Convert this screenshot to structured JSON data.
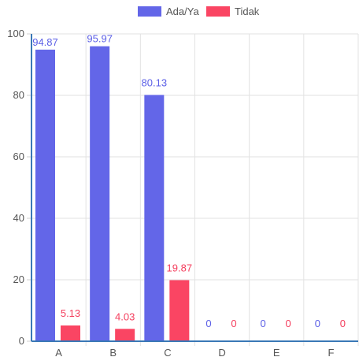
{
  "chart_data": {
    "type": "bar",
    "categories": [
      "A",
      "B",
      "C",
      "D",
      "E",
      "F"
    ],
    "series": [
      {
        "name": "Ada/Ya",
        "values": [
          94.87,
          95.97,
          80.13,
          0,
          0,
          0
        ],
        "color": "#6366e8",
        "label_color": "#5b5fe6"
      },
      {
        "name": "Tidak",
        "values": [
          5.13,
          4.03,
          19.87,
          0,
          0,
          0
        ],
        "color": "#fa4563",
        "label_color": "#f43f5e"
      }
    ],
    "data_labels": [
      [
        "94.87",
        "95.97",
        "80.13",
        "0",
        "0",
        "0"
      ],
      [
        "5.13",
        "4.03",
        "19.87",
        "0",
        "0",
        "0"
      ]
    ],
    "y_ticks": [
      "0",
      "20",
      "40",
      "60",
      "80",
      "100"
    ],
    "ylim": [
      0,
      100
    ],
    "grid": true,
    "legend_position": "top-center",
    "title": "",
    "xlabel": "",
    "ylabel": ""
  }
}
